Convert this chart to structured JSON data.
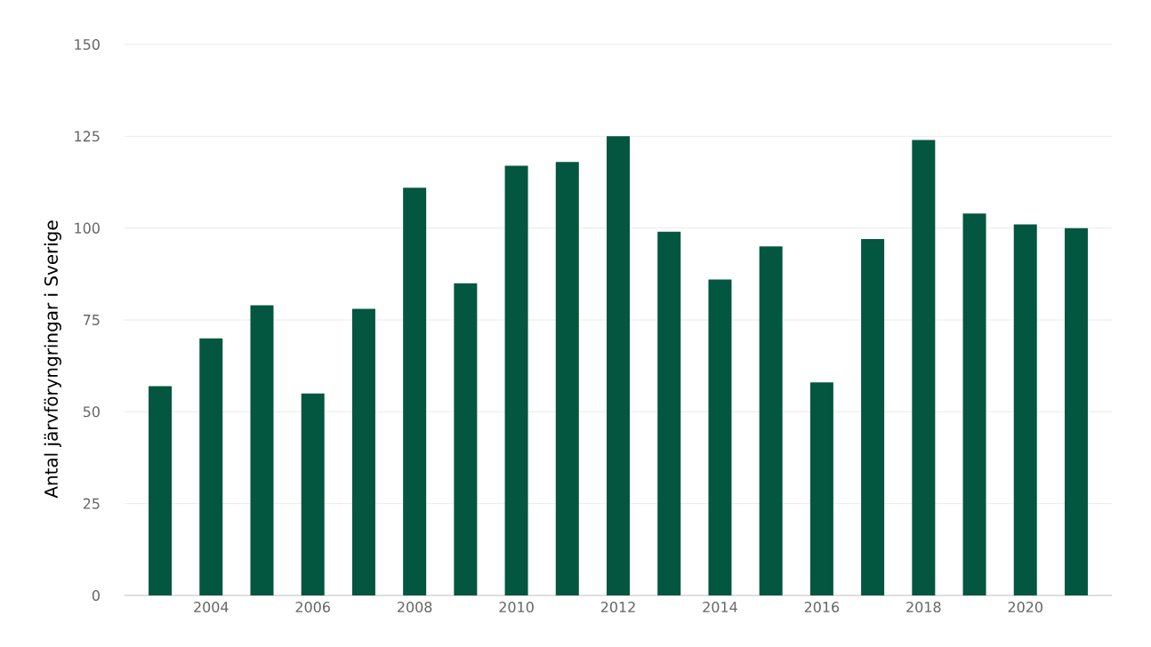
{
  "chart_data": {
    "type": "bar",
    "ylabel": "Antal järvföryngringar i Sverige",
    "x": [
      2003,
      2004,
      2005,
      2006,
      2007,
      2008,
      2009,
      2010,
      2011,
      2012,
      2013,
      2014,
      2015,
      2016,
      2017,
      2018,
      2019,
      2020,
      2021
    ],
    "values": [
      57,
      70,
      79,
      55,
      78,
      111,
      85,
      117,
      118,
      125,
      99,
      86,
      95,
      58,
      97,
      124,
      104,
      101,
      100
    ],
    "color": "#03563f",
    "xlim": [
      2002.3,
      2021.7
    ],
    "xticks": [
      2004,
      2006,
      2008,
      2010,
      2012,
      2014,
      2016,
      2018,
      2020
    ],
    "ylim": [
      0,
      150
    ],
    "yticks": [
      0,
      25,
      50,
      75,
      100,
      125,
      150
    ],
    "grid": "y"
  }
}
